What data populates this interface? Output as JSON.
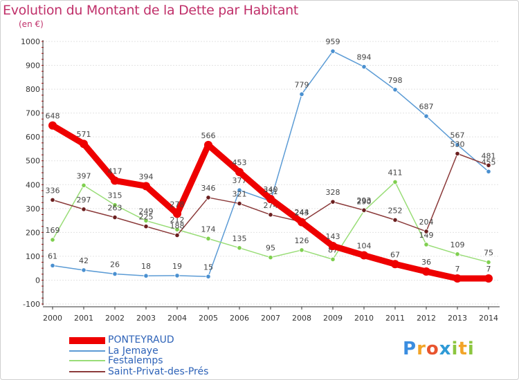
{
  "header": {
    "title": "Evolution du Montant de la Dette par Habitant",
    "unit": "(en €)"
  },
  "colors": {
    "title": "#c0306a",
    "axis": "#333333",
    "grid": "#e3e3e3",
    "tick_marks": "#cc0000"
  },
  "logo": {
    "letters": [
      "P",
      "r",
      "o",
      "x",
      "i",
      "t",
      "i"
    ],
    "letter_colors": [
      "#3a8de0",
      "#f2a428",
      "#e8542e",
      "#2f9ad6",
      "#8cc63f",
      "#f2a428",
      "#8cc63f"
    ]
  },
  "chart_data": {
    "type": "line",
    "title": "Evolution du Montant de la Dette par Habitant",
    "ylabel": "(en €)",
    "xlabel": "",
    "ylim": [
      -100,
      1000
    ],
    "yticks": [
      -100,
      0,
      100,
      200,
      300,
      400,
      500,
      600,
      700,
      800,
      900,
      1000
    ],
    "x": [
      2000,
      2001,
      2002,
      2003,
      2004,
      2005,
      2006,
      2007,
      2008,
      2009,
      2010,
      2011,
      2012,
      2013,
      2014
    ],
    "grid": "horizontal",
    "legend_position": "bottom-left",
    "series": [
      {
        "name": "PONTEYRAUD",
        "color": "#ee0000",
        "marker": "#ee0000",
        "width": "thick",
        "values": [
          648,
          571,
          417,
          394,
          278,
          566,
          453,
          340,
          243,
          143,
          104,
          67,
          36,
          7,
          7
        ]
      },
      {
        "name": "La Jemaye",
        "color": "#5b9bd5",
        "marker": "#4a90d0",
        "width": "thin",
        "values": [
          61,
          42,
          26,
          18,
          19,
          15,
          377,
          331,
          779,
          959,
          894,
          798,
          687,
          567,
          455
        ]
      },
      {
        "name": "Festalemps",
        "color": "#99dd77",
        "marker": "#7fcf4f",
        "width": "thin",
        "values": [
          169,
          397,
          315,
          249,
          212,
          174,
          135,
          95,
          126,
          87,
          290,
          411,
          149,
          109,
          75
        ]
      },
      {
        "name": "Saint-Privat-des-Prés",
        "color": "#8b3a3a",
        "marker": "#6b1f1f",
        "width": "thin",
        "values": [
          336,
          297,
          263,
          225,
          188,
          346,
          321,
          274,
          244,
          328,
          293,
          252,
          204,
          530,
          481
        ]
      }
    ]
  }
}
